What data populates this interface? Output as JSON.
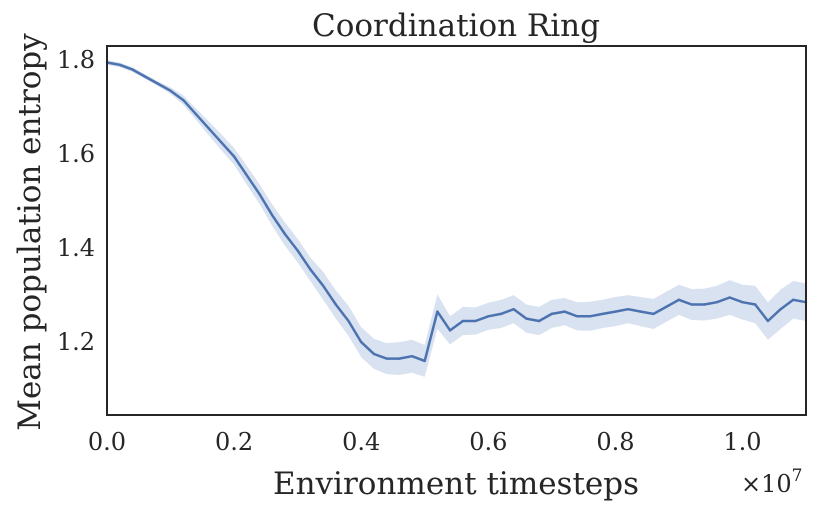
{
  "chart_data": {
    "type": "line",
    "title": "Coordination Ring",
    "xlabel": "Environment timesteps",
    "ylabel": "Mean population entropy",
    "x_scale_label": "×10",
    "x_scale_exponent": "7",
    "xlim": [
      0.0,
      1.1
    ],
    "ylim": [
      1.045,
      1.83
    ],
    "xticks": [
      0.0,
      0.2,
      0.4,
      0.6,
      0.8,
      1.0
    ],
    "xtick_labels": [
      "0.0",
      "0.2",
      "0.4",
      "0.6",
      "0.8",
      "1.0"
    ],
    "yticks": [
      1.2,
      1.4,
      1.6,
      1.8
    ],
    "ytick_labels": [
      "1.2",
      "1.4",
      "1.6",
      "1.8"
    ],
    "grid": false,
    "line_color": "#4c72b0",
    "band_color": "#c9d5ea",
    "series": [
      {
        "x": [
          0.0,
          0.02,
          0.04,
          0.06,
          0.08,
          0.1,
          0.12,
          0.14,
          0.16,
          0.18,
          0.2,
          0.22,
          0.24,
          0.26,
          0.28,
          0.3,
          0.32,
          0.34,
          0.36,
          0.38,
          0.4,
          0.42,
          0.44,
          0.46,
          0.48,
          0.5,
          0.52,
          0.54,
          0.56,
          0.58,
          0.6,
          0.62,
          0.64,
          0.66,
          0.68,
          0.7,
          0.72,
          0.74,
          0.76,
          0.78,
          0.8,
          0.82,
          0.84,
          0.86,
          0.88,
          0.9,
          0.92,
          0.94,
          0.96,
          0.98,
          1.0,
          1.02,
          1.04,
          1.06,
          1.08,
          1.1
        ],
        "values": [
          1.795,
          1.79,
          1.78,
          1.765,
          1.75,
          1.735,
          1.715,
          1.685,
          1.655,
          1.625,
          1.595,
          1.555,
          1.515,
          1.47,
          1.43,
          1.395,
          1.355,
          1.32,
          1.28,
          1.245,
          1.2,
          1.175,
          1.165,
          1.165,
          1.17,
          1.16,
          1.265,
          1.225,
          1.245,
          1.245,
          1.255,
          1.26,
          1.27,
          1.25,
          1.245,
          1.26,
          1.265,
          1.255,
          1.255,
          1.26,
          1.265,
          1.27,
          1.265,
          1.26,
          1.275,
          1.29,
          1.28,
          1.28,
          1.285,
          1.295,
          1.285,
          1.28,
          1.245,
          1.27,
          1.29,
          1.285
        ],
        "lower": [
          1.79,
          1.785,
          1.775,
          1.76,
          1.745,
          1.728,
          1.705,
          1.673,
          1.64,
          1.608,
          1.577,
          1.535,
          1.494,
          1.447,
          1.405,
          1.37,
          1.33,
          1.29,
          1.25,
          1.213,
          1.168,
          1.143,
          1.132,
          1.13,
          1.135,
          1.126,
          1.228,
          1.195,
          1.215,
          1.216,
          1.226,
          1.23,
          1.24,
          1.22,
          1.215,
          1.23,
          1.236,
          1.225,
          1.224,
          1.23,
          1.234,
          1.24,
          1.234,
          1.228,
          1.243,
          1.258,
          1.247,
          1.246,
          1.25,
          1.258,
          1.248,
          1.24,
          1.205,
          1.228,
          1.25,
          1.245
        ],
        "upper": [
          1.8,
          1.795,
          1.785,
          1.77,
          1.755,
          1.742,
          1.725,
          1.697,
          1.67,
          1.642,
          1.613,
          1.575,
          1.536,
          1.493,
          1.455,
          1.42,
          1.38,
          1.35,
          1.31,
          1.277,
          1.232,
          1.207,
          1.198,
          1.2,
          1.205,
          1.194,
          1.302,
          1.255,
          1.275,
          1.274,
          1.284,
          1.29,
          1.3,
          1.28,
          1.275,
          1.29,
          1.294,
          1.285,
          1.286,
          1.29,
          1.296,
          1.3,
          1.296,
          1.292,
          1.307,
          1.322,
          1.313,
          1.314,
          1.32,
          1.332,
          1.322,
          1.32,
          1.285,
          1.312,
          1.33,
          1.325
        ]
      }
    ]
  }
}
